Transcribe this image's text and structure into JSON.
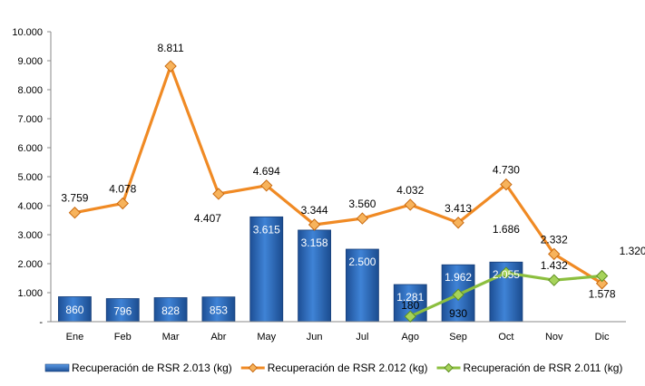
{
  "chart_data": {
    "type": "bar",
    "categories": [
      "Ene",
      "Feb",
      "Mar",
      "Abr",
      "May",
      "Jun",
      "Jul",
      "Ago",
      "Sep",
      "Oct",
      "Nov",
      "Dic"
    ],
    "ylim": [
      0,
      10000
    ],
    "yticks": [
      "-",
      "1.000",
      "2.000",
      "3.000",
      "4.000",
      "5.000",
      "6.000",
      "7.000",
      "8.000",
      "9.000",
      "10.000"
    ],
    "grid": false,
    "legend_position": "bottom",
    "series": [
      {
        "name": "Recuperación de RSR 2.013 (kg)",
        "type": "bar",
        "color": "#2e6bb8",
        "values": [
          860,
          796,
          828,
          853,
          3615,
          3158,
          2500,
          1281,
          1962,
          2055,
          null,
          null
        ],
        "labels": [
          "860",
          "796",
          "828",
          "853",
          "3.615",
          "3.158",
          "2.500",
          "1.281",
          "1.962",
          "2.055",
          "",
          ""
        ]
      },
      {
        "name": "Recuperación de RSR 2.012 (kg)",
        "type": "line",
        "color": "#f08a24",
        "values": [
          3759,
          4078,
          8811,
          4407,
          4694,
          3344,
          3560,
          4032,
          3413,
          4730,
          2332,
          1320
        ],
        "labels": [
          "3.759",
          "4.078",
          "8.811",
          "4.407",
          "4.694",
          "3.344",
          "3.560",
          "4.032",
          "3.413",
          "4.730",
          "2.332",
          "1.320"
        ]
      },
      {
        "name": "Recuperación de RSR 2.011 (kg)",
        "type": "line",
        "color": "#8cbf3f",
        "values": [
          null,
          null,
          null,
          null,
          null,
          null,
          null,
          180,
          930,
          1686,
          1432,
          1578
        ],
        "labels": [
          "",
          "",
          "",
          "",
          "",
          "",
          "",
          "180",
          "930",
          "1.686",
          "1.432",
          "1.578"
        ]
      }
    ]
  }
}
